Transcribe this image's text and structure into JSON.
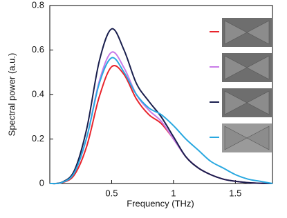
{
  "chart_data": {
    "type": "line",
    "x_label": "Frequency (THz)",
    "y_label": "Spectral power (a.u.)",
    "x": [
      0,
      0.1,
      0.2,
      0.3,
      0.4,
      0.5,
      0.6,
      0.7,
      0.8,
      0.9,
      1.0,
      1.1,
      1.2,
      1.3,
      1.4,
      1.5,
      1.6,
      1.7,
      1.8
    ],
    "series": [
      {
        "color": "#e8242c",
        "values": [
          0,
          0.004,
          0.04,
          0.17,
          0.39,
          0.525,
          0.49,
          0.38,
          0.31,
          0.27,
          0.2,
          0.12,
          0.07,
          0.04,
          0.02,
          0.01,
          0.004,
          0.001,
          0
        ]
      },
      {
        "color": "#c87be8",
        "values": [
          0,
          0.005,
          0.05,
          0.21,
          0.46,
          0.59,
          0.52,
          0.4,
          0.33,
          0.28,
          0.2,
          0.12,
          0.07,
          0.04,
          0.02,
          0.01,
          0.004,
          0.001,
          0
        ]
      },
      {
        "color": "#1a1f4e",
        "values": [
          0,
          0.006,
          0.06,
          0.25,
          0.55,
          0.695,
          0.6,
          0.45,
          0.37,
          0.3,
          0.21,
          0.12,
          0.07,
          0.04,
          0.02,
          0.01,
          0.004,
          0.001,
          0
        ]
      },
      {
        "color": "#29a8e0",
        "values": [
          0,
          0.005,
          0.05,
          0.21,
          0.45,
          0.565,
          0.5,
          0.4,
          0.34,
          0.31,
          0.26,
          0.2,
          0.15,
          0.1,
          0.07,
          0.04,
          0.02,
          0.01,
          0
        ]
      }
    ],
    "xlim": [
      0,
      1.8
    ],
    "xticks": [
      0.5,
      1,
      1.5
    ],
    "ylim": [
      0,
      0.8
    ],
    "yticks": [
      0,
      0.2,
      0.4,
      0.6,
      0.8
    ],
    "legend": "right"
  }
}
